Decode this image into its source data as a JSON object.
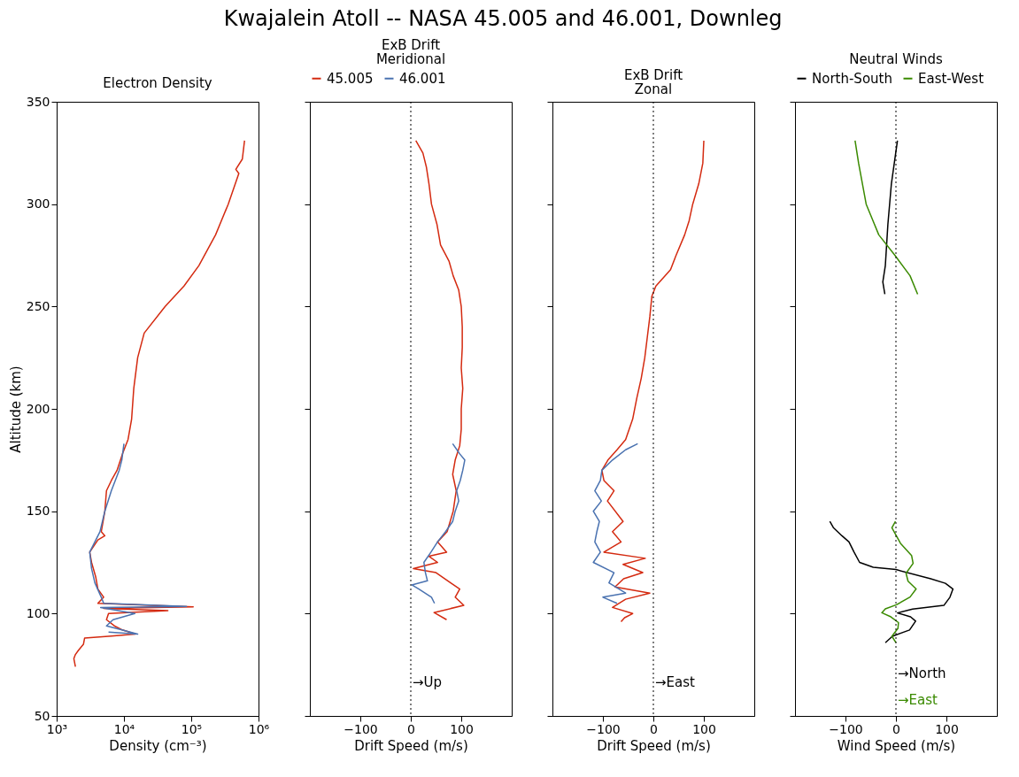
{
  "chart_data": [
    {
      "type": "line",
      "title": "Electron Density",
      "xlabel": "Density (cm⁻³)",
      "ylabel": "Altitude (km)",
      "log": "x",
      "xlim": [
        1000,
        1000000
      ],
      "xticks": [
        {
          "value": 1000,
          "label": "10³"
        },
        {
          "value": 10000,
          "label": "10⁴"
        },
        {
          "value": 100000,
          "label": "10⁵"
        },
        {
          "value": 1000000,
          "label": "10⁶"
        }
      ],
      "ylim": [
        50,
        350
      ],
      "yticks": [
        50,
        100,
        150,
        200,
        250,
        300,
        350
      ],
      "annotations": [
        "Kwajalein Atoll -- NASA 45.005 and 46.001, Downleg"
      ],
      "series": [
        {
          "color": "#d42a10",
          "x": [
            620000,
            575000,
            460000,
            510000,
            355000,
            230000,
            130000,
            78000,
            41000,
            20000,
            16000,
            14000,
            13000,
            11500,
            9500,
            7900,
            6500,
            5500,
            5200,
            4900,
            4600,
            5200,
            4100,
            3100,
            3300,
            3800,
            4100,
            5000,
            4100,
            107000,
            5000,
            45000,
            5900,
            5500,
            7200,
            9500,
            14800,
            6500,
            2600,
            2500,
            2100,
            1900,
            1800,
            1900
          ],
          "values": [
            331,
            322,
            317,
            315,
            300,
            285,
            270,
            260,
            250,
            237,
            225,
            210,
            195,
            185,
            178,
            170,
            165,
            160,
            150,
            145,
            140,
            138,
            136,
            130,
            125,
            118,
            112,
            108,
            105,
            103.3,
            102.5,
            101.4,
            100,
            97,
            94,
            92,
            90,
            89,
            88,
            85,
            82,
            80,
            78,
            74
          ]
        },
        {
          "color": "#4a72b0",
          "x": [
            10000,
            9300,
            8500,
            6500,
            5200,
            4400,
            3100,
            3300,
            3700,
            4600,
            5000,
            85000,
            4500,
            14500,
            6900,
            5500,
            9300,
            16000,
            5900
          ],
          "values": [
            183,
            175,
            170,
            160,
            150,
            140,
            130,
            122,
            115,
            108,
            105,
            103.5,
            103,
            100,
            97,
            94,
            92,
            90,
            91
          ]
        }
      ]
    },
    {
      "type": "line",
      "title": "ExB Drift",
      "subtitle": "Meridional",
      "xlabel": "Drift Speed (m/s)",
      "xlim": [
        -200,
        200
      ],
      "xticks": [
        -100,
        0,
        100
      ],
      "ylim": [
        50,
        350
      ],
      "yticks": [
        50,
        100,
        150,
        200,
        250,
        300,
        350
      ],
      "tick_labels": "x",
      "legend": "top",
      "ref_lines": [
        {
          "axis": "x",
          "value": 0,
          "line_style": "dotted"
        }
      ],
      "annotations": [
        "→Up"
      ],
      "series": [
        {
          "name": "45.005",
          "color": "#d42a10",
          "x": [
            10,
            24,
            31,
            36,
            41,
            52,
            59,
            76,
            84,
            95,
            100,
            102,
            102,
            100,
            103,
            100,
            100,
            97,
            88,
            83,
            90,
            84,
            72,
            53,
            71,
            36,
            53,
            5,
            50,
            79,
            97,
            88,
            105,
            46,
            71
          ],
          "values": [
            331,
            325,
            318,
            310,
            300,
            290,
            280,
            272,
            265,
            258,
            250,
            240,
            230,
            220,
            210,
            200,
            190,
            182,
            175,
            168,
            160,
            150,
            140,
            135,
            130,
            128,
            125,
            122,
            120,
            115,
            112,
            108,
            104,
            100.5,
            97
          ]
        },
        {
          "name": "46.001",
          "color": "#4a72b0",
          "x": [
            83,
            97,
            107,
            103,
            98,
            91,
            95,
            88,
            83,
            69,
            53,
            40,
            26,
            29,
            33,
            2,
            16,
            41,
            47
          ],
          "values": [
            183,
            178,
            175,
            170,
            165,
            160,
            155,
            150,
            145,
            140,
            135,
            130,
            125,
            120,
            116,
            114,
            112,
            108,
            105
          ]
        }
      ]
    },
    {
      "type": "line",
      "title": "ExB Drift",
      "subtitle": "Zonal",
      "xlabel": "Drift Speed (m/s)",
      "xlim": [
        -200,
        200
      ],
      "xticks": [
        -100,
        0,
        100
      ],
      "ylim": [
        50,
        350
      ],
      "yticks": [
        50,
        100,
        150,
        200,
        250,
        300,
        350
      ],
      "tick_labels": "x",
      "ref_lines": [
        {
          "axis": "x",
          "value": 0,
          "line_style": "dotted"
        }
      ],
      "annotations": [
        "→East"
      ],
      "series": [
        {
          "color": "#d42a10",
          "x": [
            100,
            98,
            90,
            78,
            71,
            62,
            45,
            34,
            5,
            -3,
            -7,
            -12,
            -17,
            -24,
            -33,
            -41,
            -55,
            -72,
            -90,
            -102,
            -98,
            -78,
            -91,
            -60,
            -81,
            -64,
            -98,
            -16,
            -60,
            -21,
            -59,
            -76,
            -7,
            -55,
            -81,
            -41,
            -57,
            -64
          ],
          "values": [
            331,
            320,
            310,
            300,
            292,
            285,
            275,
            268,
            260,
            255,
            245,
            235,
            225,
            215,
            205,
            195,
            185,
            180,
            175,
            170,
            165,
            160,
            155,
            145,
            140,
            135,
            130,
            127,
            124,
            120,
            117,
            113,
            110,
            107,
            103,
            100,
            98,
            96
          ]
        },
        {
          "color": "#4a72b0",
          "x": [
            -31,
            -55,
            -81,
            -102,
            -105,
            -116,
            -103,
            -119,
            -107,
            -112,
            -116,
            -105,
            -119,
            -78,
            -88,
            -55,
            -100,
            -72
          ],
          "values": [
            183,
            180,
            175,
            170,
            165,
            160,
            155,
            150,
            145,
            140,
            135,
            130,
            125,
            120,
            115,
            110,
            108,
            105
          ]
        }
      ]
    },
    {
      "type": "line",
      "title": "Neutral Winds",
      "xlabel": "Wind Speed (m/s)",
      "xlim": [
        -200,
        200
      ],
      "xticks": [
        -100,
        0,
        100
      ],
      "ylim": [
        50,
        350
      ],
      "yticks": [
        50,
        100,
        150,
        200,
        250,
        300,
        350
      ],
      "tick_labels": "x",
      "legend": "top",
      "ref_lines": [
        {
          "axis": "x",
          "value": 0,
          "line_style": "dotted"
        }
      ],
      "annotations": [
        "→North",
        "→East"
      ],
      "series": [
        {
          "name": "North-South",
          "color": "#000000",
          "x": [
            3,
            -9,
            -16,
            -21,
            -26,
            -22,
            null,
            -131,
            -124,
            -107,
            -93,
            -83,
            -72,
            -45,
            0,
            69,
            98,
            113,
            107,
            95,
            33,
            3,
            29,
            39,
            27,
            -7,
            -21
          ],
          "values": [
            331,
            310,
            290,
            270,
            262,
            256,
            null,
            145,
            142,
            138,
            135,
            130,
            125,
            122.6,
            121.5,
            117,
            114.8,
            112,
            108,
            104,
            102.2,
            100.3,
            98.4,
            96.3,
            92,
            88.9,
            85.8
          ]
        },
        {
          "name": "East-West",
          "color": "#3a8a00",
          "x": [
            -81,
            -74,
            -59,
            -34,
            -2,
            28,
            43,
            null,
            -1,
            -8,
            9,
            31,
            34,
            20,
            24,
            40,
            28,
            1,
            -21,
            -28,
            -10,
            5,
            4,
            -8,
            0
          ],
          "values": [
            331,
            320,
            300,
            285,
            275,
            265,
            256,
            null,
            145,
            141.9,
            134.3,
            128.4,
            124.5,
            119.7,
            115.8,
            112,
            108.1,
            104.3,
            102.3,
            100.4,
            98.4,
            95.6,
            92.8,
            88.9,
            85.8
          ]
        }
      ]
    }
  ]
}
